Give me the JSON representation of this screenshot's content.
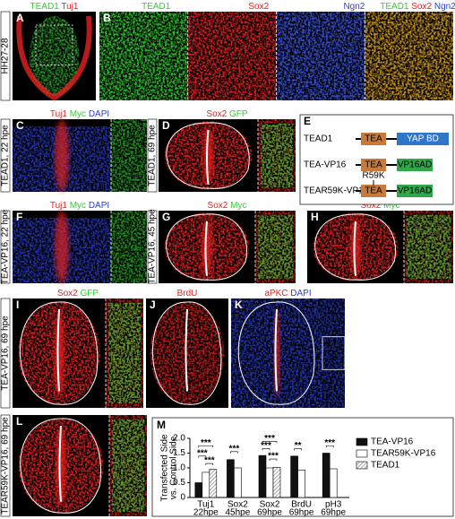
{
  "panels": [
    {
      "letter": "A",
      "labels": [
        [
          {
            "text": "TEAD1",
            "color": "#33cc33"
          },
          {
            "text": "Tuj1",
            "color": "#e52222"
          }
        ]
      ],
      "side": "HH27-28"
    },
    {
      "letter": "B",
      "labels": [
        [
          {
            "text": "TEAD1",
            "color": "#33cc33"
          }
        ],
        [
          {
            "text": "Sox2",
            "color": "#e52222"
          }
        ],
        [
          {
            "text": "Ngn2",
            "color": "#2a3fd0"
          }
        ],
        [
          {
            "text": "TEAD1",
            "color": "#33cc33"
          },
          {
            "text": "Sox2",
            "color": "#e52222"
          },
          {
            "text": "Ngn2",
            "color": "#2a3fd0"
          }
        ]
      ]
    },
    {
      "letter": "C",
      "labels": [
        [
          {
            "text": "Tuj1",
            "color": "#e52222"
          },
          {
            "text": "Myc",
            "color": "#33cc33"
          },
          {
            "text": "DAPI",
            "color": "#2a3fd0"
          }
        ]
      ],
      "side": "TEAD1, 22 hpe"
    },
    {
      "letter": "D",
      "labels": [
        [
          {
            "text": "Sox2",
            "color": "#e52222"
          },
          {
            "text": "GFP",
            "color": "#33cc33"
          }
        ]
      ],
      "side": "TEAD1, 69 hpe"
    },
    {
      "letter": "F",
      "labels": [
        [
          {
            "text": "Tuj1",
            "color": "#e52222"
          },
          {
            "text": "Myc",
            "color": "#33cc33"
          },
          {
            "text": "DAPI",
            "color": "#2a3fd0"
          }
        ]
      ],
      "side": "TEA-VP16, 22 hpe"
    },
    {
      "letter": "G",
      "labels": [
        [
          {
            "text": "Sox2",
            "color": "#e52222"
          },
          {
            "text": "Myc",
            "color": "#33cc33"
          }
        ]
      ],
      "side": "TEA-VP16, 45 hpe"
    },
    {
      "letter": "H",
      "labels": [
        [
          {
            "text": "Sox2",
            "color": "#e52222"
          },
          {
            "text": "Myc",
            "color": "#33cc33"
          }
        ]
      ]
    },
    {
      "letter": "I",
      "labels": [
        [
          {
            "text": "Sox2",
            "color": "#e52222"
          },
          {
            "text": "GFP",
            "color": "#33cc33"
          }
        ]
      ],
      "side": "TEA-VP16, 69 hpe"
    },
    {
      "letter": "J",
      "labels": [
        [
          {
            "text": "BrdU",
            "color": "#e52222"
          }
        ]
      ]
    },
    {
      "letter": "K",
      "labels": [
        [
          {
            "text": "aPKC",
            "color": "#e52222"
          },
          {
            "text": "DAPI",
            "color": "#2a3fd0"
          }
        ]
      ]
    },
    {
      "letter": "L",
      "labels": [],
      "side": "TEAR59K-VP16, 69 hpe"
    }
  ],
  "diagram": {
    "letter": "E",
    "constructs": [
      {
        "name": "TEAD1",
        "domains": [
          "TEA",
          "YAP BD"
        ]
      },
      {
        "name": "TEA-VP16",
        "domains": [
          "TEA",
          "VP16AD"
        ]
      },
      {
        "name": "TEAR59K-VP16",
        "domains": [
          "TEA",
          "VP16AD"
        ],
        "mutation": "R59K"
      }
    ]
  },
  "chart_data": {
    "type": "bar",
    "letter": "M",
    "ylabel": [
      "Transfected Side",
      "vs. Control Side"
    ],
    "categories": [
      [
        "Tuj1",
        "22hpe"
      ],
      [
        "Sox2",
        "45hpe"
      ],
      [
        "Sox2",
        "69hpe"
      ],
      [
        "BrdU",
        "69hpe"
      ],
      [
        "pH3",
        "69hpe"
      ]
    ],
    "series": [
      {
        "name": "TEA-VP16",
        "color": "#111111",
        "values": [
          0.5,
          1.28,
          1.42,
          1.4,
          1.5
        ]
      },
      {
        "name": "TEAR59K-VP16",
        "color": "#ffffff",
        "values": [
          0.85,
          1.0,
          1.0,
          0.93,
          0.97
        ]
      },
      {
        "name": "TEAD1",
        "color": "#777777",
        "hatch": true,
        "values": [
          0.95,
          null,
          1.02,
          null,
          null
        ]
      }
    ],
    "ylim": [
      0,
      2
    ],
    "yticks": [
      0,
      0.5,
      {
        "value": 1,
        "label": "1.0"
      },
      1.5,
      {
        "value": 2,
        "label": "2.0"
      }
    ],
    "annotations": [
      "***",
      "***",
      "***",
      "***",
      "***",
      "***",
      "***",
      "**",
      "***"
    ]
  }
}
